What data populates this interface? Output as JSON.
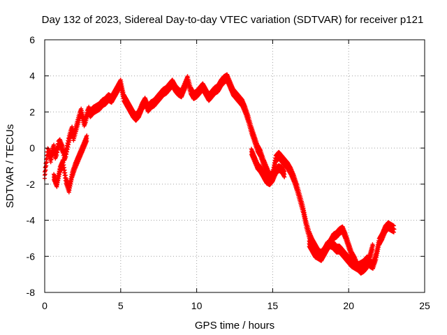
{
  "chart_data": {
    "type": "scatter",
    "title": "Day 132 of 2023, Sidereal Day-to-day VTEC variation (SDTVAR) for receiver p121",
    "xlabel": "GPS time / hours",
    "ylabel": "SDTVAR / TECUs",
    "xlim": [
      0,
      25
    ],
    "ylim": [
      -8,
      6
    ],
    "xticks": [
      0,
      5,
      10,
      15,
      20,
      25
    ],
    "yticks": [
      -8,
      -6,
      -4,
      -2,
      0,
      2,
      4,
      6
    ],
    "grid": true,
    "marker": "+",
    "color": "#ff0000",
    "series": [
      {
        "name": "SDTVAR",
        "x": [
          0.0,
          0.1,
          0.2,
          0.3,
          0.4,
          0.5,
          0.6,
          0.7,
          0.8,
          0.9,
          1.0,
          1.1,
          1.2,
          1.3,
          1.4,
          1.5,
          1.6,
          1.7,
          1.8,
          1.9,
          2.0,
          2.1,
          2.2,
          2.3,
          2.4,
          2.5,
          2.6,
          2.7,
          2.8,
          2.9,
          3.0,
          3.2,
          3.4,
          3.6,
          3.8,
          4.0,
          4.2,
          4.4,
          4.6,
          4.8,
          5.0,
          5.2,
          5.4,
          5.6,
          5.8,
          6.0,
          6.2,
          6.4,
          6.6,
          6.8,
          7.0,
          7.2,
          7.4,
          7.6,
          7.8,
          8.0,
          8.2,
          8.4,
          8.6,
          8.8,
          9.0,
          9.2,
          9.4,
          9.6,
          9.8,
          10.0,
          10.2,
          10.4,
          10.6,
          10.8,
          11.0,
          11.2,
          11.4,
          11.6,
          11.8,
          12.0,
          12.2,
          12.4,
          12.6,
          12.8,
          13.0,
          13.2,
          13.4,
          13.6,
          13.8,
          14.0,
          14.2,
          14.4,
          14.6,
          14.8,
          15.0,
          15.2,
          15.4,
          15.6,
          15.8,
          16.0,
          16.2,
          16.4,
          16.6,
          16.8,
          17.0,
          17.2,
          17.4,
          17.6,
          17.8,
          18.0,
          18.2,
          18.4,
          18.6,
          18.8,
          19.0,
          19.2,
          19.4,
          19.6,
          19.8,
          20.0,
          20.2,
          20.4,
          20.6,
          20.8,
          21.0,
          21.2,
          21.4,
          21.6,
          21.8,
          22.0,
          22.2,
          22.4,
          22.6,
          22.8,
          23.0
        ],
        "y": [
          -1.5,
          -0.8,
          -0.2,
          -0.3,
          -0.6,
          -0.2,
          0.0,
          -0.4,
          -0.2,
          0.2,
          0.3,
          0.1,
          -0.1,
          -0.5,
          -0.3,
          0.1,
          0.5,
          0.8,
          1.0,
          0.6,
          0.9,
          1.2,
          1.5,
          1.8,
          2.0,
          1.7,
          1.4,
          1.6,
          1.9,
          2.1,
          1.9,
          2.1,
          2.2,
          2.3,
          2.5,
          2.6,
          2.8,
          2.7,
          3.0,
          3.3,
          3.6,
          2.8,
          2.5,
          2.2,
          1.9,
          1.7,
          1.9,
          2.3,
          2.6,
          2.2,
          2.4,
          2.5,
          2.7,
          2.9,
          3.1,
          3.2,
          3.4,
          3.6,
          3.3,
          3.1,
          3.0,
          3.4,
          3.8,
          3.2,
          2.9,
          3.0,
          3.2,
          3.4,
          3.1,
          2.8,
          3.0,
          3.2,
          3.3,
          3.6,
          3.8,
          3.9,
          3.5,
          3.1,
          2.9,
          2.7,
          2.5,
          2.1,
          1.6,
          1.0,
          0.5,
          0.0,
          -0.3,
          -0.8,
          -1.2,
          -1.6,
          -1.5,
          -0.6,
          -0.4,
          -0.6,
          -0.8,
          -1.0,
          -1.3,
          -1.7,
          -2.2,
          -2.8,
          -3.4,
          -4.2,
          -4.8,
          -5.2,
          -5.5,
          -5.8,
          -5.9,
          -5.7,
          -5.4,
          -5.3,
          -5.4,
          -5.6,
          -5.6,
          -5.8,
          -6.0,
          -6.2,
          -6.4,
          -6.5,
          -6.6,
          -6.5,
          -6.4,
          -6.2,
          -6.4,
          -6.5,
          -6.0,
          -5.2,
          -4.9,
          -4.5,
          -4.3,
          -4.4,
          -4.5
        ],
        "x_lower_branch": [
          0.6,
          0.8,
          1.0,
          1.2,
          1.4,
          1.6,
          1.8,
          2.0,
          2.2,
          2.4,
          2.6,
          2.8,
          13.6,
          13.8,
          14.0,
          14.2,
          14.4,
          14.6,
          14.8,
          15.0,
          15.2,
          15.4,
          15.6,
          15.8,
          17.4,
          17.6,
          17.8,
          18.0,
          18.2,
          18.4,
          18.6,
          18.8,
          19.0,
          19.2,
          19.4,
          19.6,
          19.8,
          20.0,
          20.2,
          20.4,
          20.6,
          20.8,
          21.0,
          21.2,
          21.4,
          21.6
        ],
        "y_lower_branch": [
          -1.6,
          -2.0,
          -1.2,
          -0.8,
          -1.8,
          -2.3,
          -1.5,
          -1.0,
          -0.6,
          -0.2,
          0.2,
          0.6,
          -0.2,
          -0.6,
          -1.0,
          -1.2,
          -1.5,
          -1.8,
          -1.9,
          -1.7,
          -1.3,
          -1.1,
          -1.2,
          -1.5,
          -5.3,
          -5.6,
          -5.9,
          -6.0,
          -6.1,
          -5.8,
          -5.5,
          -5.2,
          -4.9,
          -4.8,
          -4.6,
          -4.5,
          -4.9,
          -5.4,
          -5.9,
          -6.2,
          -6.6,
          -6.8,
          -6.7,
          -6.5,
          -6.0,
          -5.4
        ]
      }
    ]
  }
}
